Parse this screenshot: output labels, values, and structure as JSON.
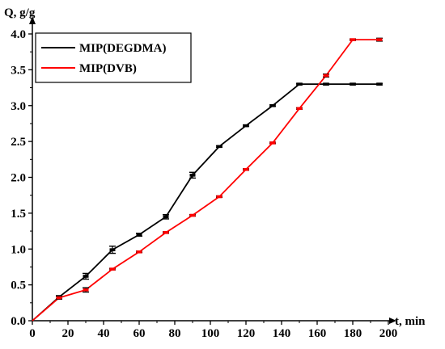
{
  "chart_data": {
    "type": "line",
    "xlabel": "t, min",
    "ylabel": "Q, g/g",
    "xlim": [
      0,
      200
    ],
    "ylim": [
      0,
      4.0
    ],
    "x_ticks": [
      "0",
      "20",
      "40",
      "60",
      "80",
      "100",
      "120",
      "140",
      "160",
      "180",
      "200"
    ],
    "y_ticks": [
      "0.0",
      "0.5",
      "1.0",
      "1.5",
      "2.0",
      "2.5",
      "3.0",
      "3.5",
      "4.0"
    ],
    "grid": false,
    "legend_position": "top-left",
    "series": [
      {
        "name": "MIP(DEGDMA)",
        "color": "#000000",
        "x": [
          0,
          15,
          30,
          45,
          60,
          75,
          90,
          105,
          120,
          135,
          150,
          165,
          180,
          195
        ],
        "y": [
          0,
          0.33,
          0.62,
          0.99,
          1.2,
          1.45,
          2.03,
          2.43,
          2.72,
          3.0,
          3.3,
          3.3,
          3.3,
          3.3
        ],
        "err": [
          0,
          0.02,
          0.04,
          0.05,
          0.02,
          0.03,
          0.04,
          0.01,
          0.01,
          0.01,
          0.01,
          0.01,
          0.01,
          0.01
        ]
      },
      {
        "name": "MIP(DVB)",
        "color": "#ff0000",
        "x": [
          0,
          15,
          30,
          45,
          60,
          75,
          90,
          105,
          120,
          135,
          150,
          165,
          180,
          195
        ],
        "y": [
          0,
          0.32,
          0.43,
          0.72,
          0.96,
          1.23,
          1.47,
          1.73,
          2.11,
          2.48,
          2.96,
          3.42,
          3.92,
          3.92
        ],
        "err": [
          0,
          0.02,
          0.03,
          0.01,
          0.01,
          0.01,
          0.01,
          0.01,
          0.01,
          0.01,
          0.01,
          0.02,
          0.01,
          0.02
        ]
      }
    ]
  }
}
